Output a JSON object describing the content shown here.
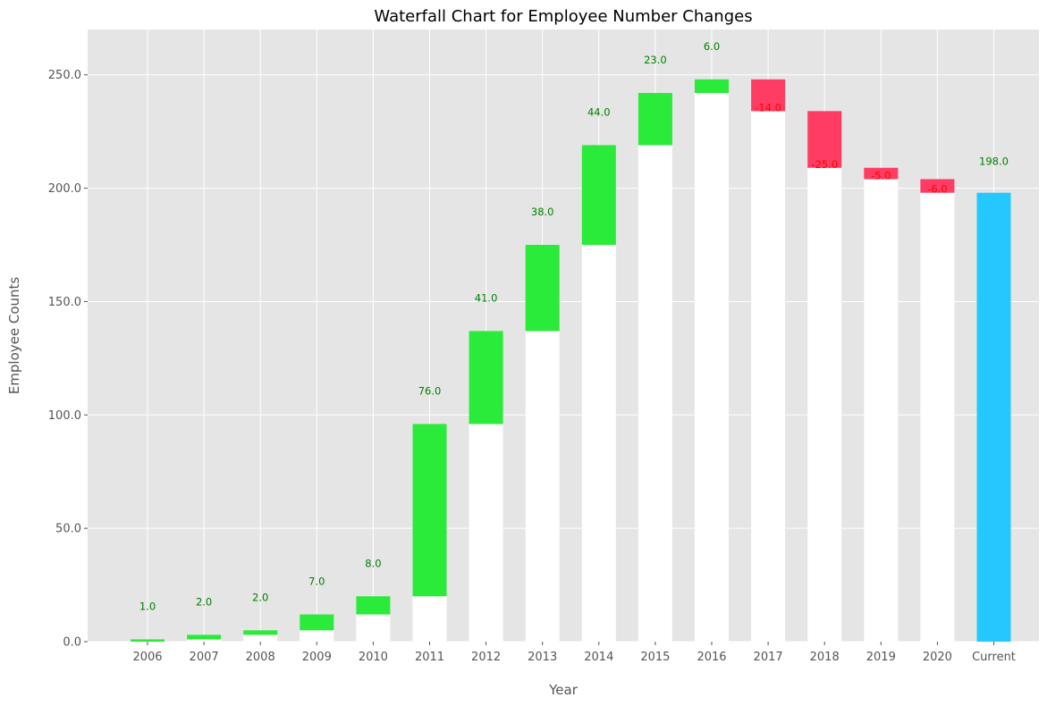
{
  "chart_data": {
    "type": "bar",
    "subtype": "waterfall",
    "title": "Waterfall Chart for Employee Number Changes",
    "xlabel": "Year",
    "ylabel": "Employee Counts",
    "ylim": [
      0,
      270
    ],
    "yticks": [
      0,
      50,
      100,
      150,
      200,
      250
    ],
    "ytick_labels": [
      "0.0",
      "50.0",
      "100.0",
      "150.0",
      "200.0",
      "250.0"
    ],
    "grid": true,
    "categories": [
      "2006",
      "2007",
      "2008",
      "2009",
      "2010",
      "2011",
      "2012",
      "2013",
      "2014",
      "2015",
      "2016",
      "2017",
      "2018",
      "2019",
      "2020",
      "Current"
    ],
    "changes": [
      1,
      2,
      2,
      7,
      8,
      76,
      41,
      38,
      44,
      23,
      6,
      -14,
      -25,
      -5,
      -6
    ],
    "change_labels": [
      "1.0",
      "2.0",
      "2.0",
      "7.0",
      "8.0",
      "76.0",
      "41.0",
      "38.0",
      "44.0",
      "23.0",
      "6.0",
      "-14.0",
      "-25.0",
      "-5.0",
      "-6.0"
    ],
    "total": 198,
    "total_label": "198.0",
    "colors": {
      "increase": "#2aea3a",
      "decrease": "#ff3d63",
      "total": "#24c8ff",
      "base": "#ffffff",
      "positive_label": "#008000",
      "negative_label": "#ff0000",
      "plot_background": "#e5e5e5",
      "grid": "#ffffff"
    }
  }
}
